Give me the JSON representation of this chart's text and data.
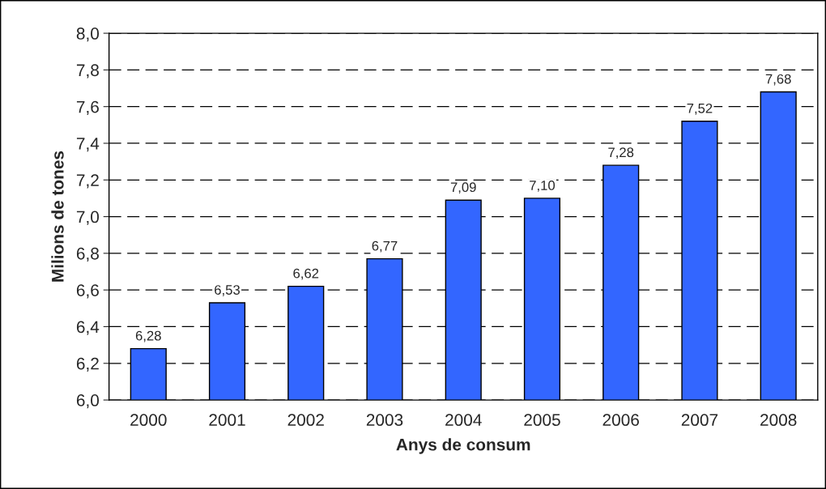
{
  "chart_data": {
    "type": "bar",
    "xlabel": "Anys de consum",
    "ylabel": "Milions de tones",
    "categories": [
      "2000",
      "2001",
      "2002",
      "2003",
      "2004",
      "2005",
      "2006",
      "2007",
      "2008"
    ],
    "values": [
      6.28,
      6.53,
      6.62,
      6.77,
      7.09,
      7.1,
      7.28,
      7.52,
      7.68
    ],
    "value_labels": [
      "6,28",
      "6,53",
      "6,62",
      "6,77",
      "7,09",
      "7,10",
      "7,28",
      "7,52",
      "7,68"
    ],
    "color": "#3366ff",
    "ylim": [
      6.0,
      8.0
    ],
    "yticks": [
      {
        "value": 6.0,
        "label": "6,0"
      },
      {
        "value": 6.2,
        "label": "6,2"
      },
      {
        "value": 6.4,
        "label": "6,4"
      },
      {
        "value": 6.6,
        "label": "6,6"
      },
      {
        "value": 6.8,
        "label": "6,8"
      },
      {
        "value": 7.0,
        "label": "7,0"
      },
      {
        "value": 7.2,
        "label": "7,2"
      },
      {
        "value": 7.4,
        "label": "7,4"
      },
      {
        "value": 7.6,
        "label": "7,6"
      },
      {
        "value": 7.8,
        "label": "7,8"
      },
      {
        "value": 8.0,
        "label": "8,0"
      }
    ],
    "grid": "y"
  }
}
